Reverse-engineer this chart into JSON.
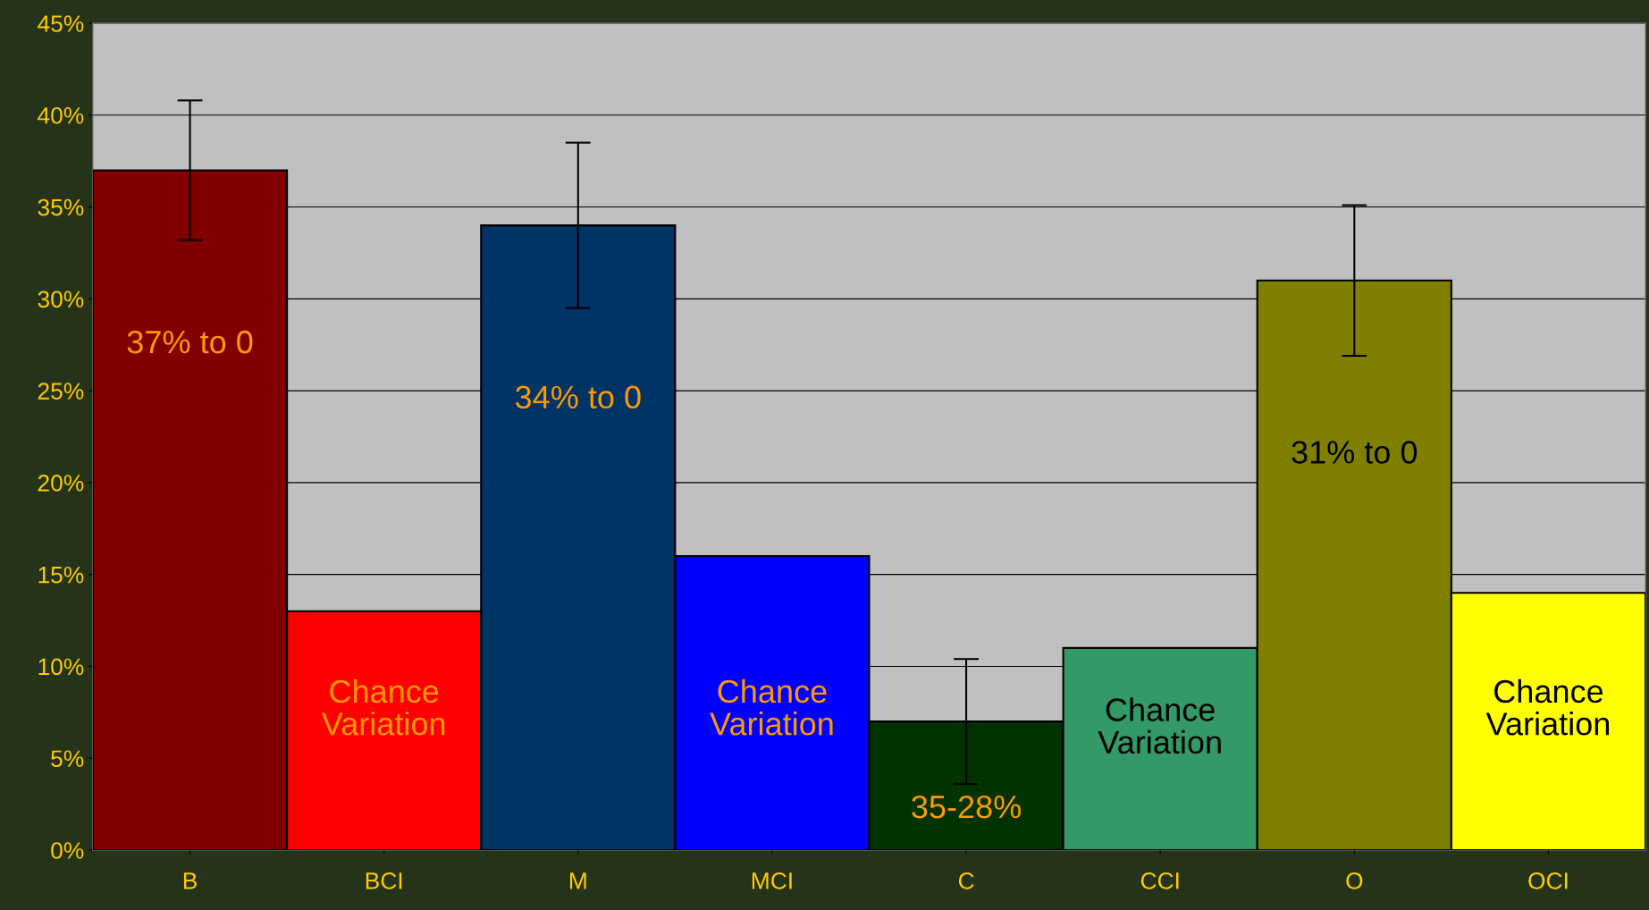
{
  "chart_data": {
    "type": "bar",
    "categories": [
      "B",
      "BCI",
      "M",
      "MCI",
      "C",
      "CCI",
      "O",
      "OCI"
    ],
    "values": [
      37,
      13,
      34,
      16,
      7,
      11,
      31,
      14
    ],
    "colors": [
      "#800000",
      "#ff0000",
      "#003366",
      "#0000ff",
      "#003300",
      "#339966",
      "#808000",
      "#ffff00"
    ],
    "errors": [
      3.8,
      null,
      4.5,
      null,
      3.4,
      null,
      4.1,
      null
    ],
    "ylim": [
      0,
      45
    ],
    "yticks": [
      {
        "value": 0,
        "label": "0%"
      },
      {
        "value": 5,
        "label": "5%"
      },
      {
        "value": 10,
        "label": "10%"
      },
      {
        "value": 15,
        "label": "15%"
      },
      {
        "value": 20,
        "label": "20%"
      },
      {
        "value": 25,
        "label": "25%"
      },
      {
        "value": 30,
        "label": "30%"
      },
      {
        "value": 35,
        "label": "35%"
      },
      {
        "value": 40,
        "label": "40%"
      },
      {
        "value": 45,
        "label": "45%"
      }
    ],
    "grid": "y",
    "annotations": [
      "37% to 0",
      "Chance\nVariation",
      "34% to 0",
      "Chance\nVariation",
      "35-28%",
      "Chance\nVariation",
      "31% to 0",
      "Chance\nVariation"
    ]
  }
}
